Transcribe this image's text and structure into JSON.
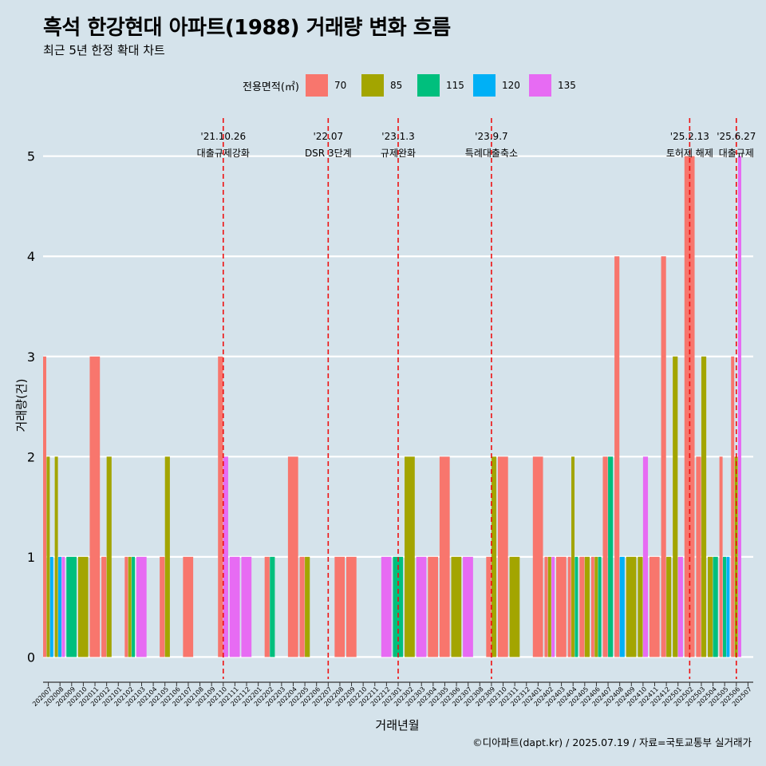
{
  "title": "흑석 한강현대 아파트(1988) 거래량 변화 흐름",
  "subtitle": "최근 5년 한정 확대 차트",
  "caption": "©디아파트(dapt.kr) / 2025.07.19 / 자료=국토교통부 실거래가",
  "legend": {
    "title": "전용면적(㎡)",
    "items": [
      {
        "label": "70",
        "color": "#f8766d"
      },
      {
        "label": "85",
        "color": "#a3a500"
      },
      {
        "label": "115",
        "color": "#00bf7d"
      },
      {
        "label": "120",
        "color": "#00b0f6"
      },
      {
        "label": "135",
        "color": "#e76bf3"
      }
    ]
  },
  "chart_data": {
    "type": "bar",
    "xlabel": "거래년월",
    "ylabel": "거래량(건)",
    "ylim": [
      -0.22,
      5.38
    ],
    "yticks": [
      0,
      1,
      2,
      3,
      4,
      5
    ],
    "grid": true,
    "legend_position": "top",
    "months": [
      "202007",
      "202008",
      "202009",
      "202010",
      "202011",
      "202012",
      "202101",
      "202102",
      "202103",
      "202104",
      "202105",
      "202106",
      "202107",
      "202108",
      "202109",
      "202110",
      "202111",
      "202112",
      "202201",
      "202202",
      "202203",
      "202204",
      "202205",
      "202206",
      "202207",
      "202208",
      "202209",
      "202210",
      "202211",
      "202212",
      "202301",
      "202302",
      "202303",
      "202304",
      "202305",
      "202306",
      "202307",
      "202308",
      "202309",
      "202310",
      "202311",
      "202312",
      "202401",
      "202402",
      "202403",
      "202404",
      "202405",
      "202406",
      "202407",
      "202408",
      "202409",
      "202410",
      "202411",
      "202412",
      "202501",
      "202502",
      "202503",
      "202504",
      "202505",
      "202506",
      "202507"
    ],
    "series": [
      {
        "name": "70",
        "color": "#f8766d",
        "points": [
          [
            "202007",
            3
          ],
          [
            "202011",
            3
          ],
          [
            "202012",
            1
          ],
          [
            "202102",
            1
          ],
          [
            "202105",
            1
          ],
          [
            "202107",
            1
          ],
          [
            "202110",
            3
          ],
          [
            "202202",
            1
          ],
          [
            "202204",
            2
          ],
          [
            "202205",
            1
          ],
          [
            "202208",
            1
          ],
          [
            "202209",
            1
          ],
          [
            "202304",
            1
          ],
          [
            "202305",
            2
          ],
          [
            "202309",
            1
          ],
          [
            "202310",
            2
          ],
          [
            "202401",
            2
          ],
          [
            "202402",
            1
          ],
          [
            "202403",
            1
          ],
          [
            "202404",
            1
          ],
          [
            "202405",
            1
          ],
          [
            "202406",
            1
          ],
          [
            "202407",
            2
          ],
          [
            "202408",
            4
          ],
          [
            "202411",
            1
          ],
          [
            "202412",
            4
          ],
          [
            "202502",
            5
          ],
          [
            "202503",
            2
          ],
          [
            "202505",
            2
          ],
          [
            "202506",
            3
          ]
        ]
      },
      {
        "name": "85",
        "color": "#a3a500",
        "points": [
          [
            "202007",
            2
          ],
          [
            "202008",
            2
          ],
          [
            "202010",
            1
          ],
          [
            "202012",
            2
          ],
          [
            "202102",
            1
          ],
          [
            "202105",
            2
          ],
          [
            "202205",
            1
          ],
          [
            "202302",
            2
          ],
          [
            "202306",
            1
          ],
          [
            "202309",
            2
          ],
          [
            "202311",
            1
          ],
          [
            "202402",
            1
          ],
          [
            "202404",
            2
          ],
          [
            "202405",
            1
          ],
          [
            "202406",
            1
          ],
          [
            "202409",
            1
          ],
          [
            "202410",
            1
          ],
          [
            "202412",
            1
          ],
          [
            "202501",
            3
          ],
          [
            "202503",
            3
          ],
          [
            "202504",
            1
          ],
          [
            "202506",
            2
          ]
        ]
      },
      {
        "name": "115",
        "color": "#00bf7d",
        "points": [
          [
            "202009",
            1
          ],
          [
            "202102",
            1
          ],
          [
            "202202",
            1
          ],
          [
            "202301",
            1
          ],
          [
            "202404",
            1
          ],
          [
            "202406",
            1
          ],
          [
            "202407",
            2
          ],
          [
            "202504",
            1
          ],
          [
            "202505",
            1
          ]
        ]
      },
      {
        "name": "120",
        "color": "#00b0f6",
        "points": [
          [
            "202007",
            1
          ],
          [
            "202008",
            1
          ],
          [
            "202408",
            1
          ],
          [
            "202505",
            1
          ]
        ]
      },
      {
        "name": "135",
        "color": "#e76bf3",
        "points": [
          [
            "202008",
            1
          ],
          [
            "202103",
            1
          ],
          [
            "202110",
            2
          ],
          [
            "202111",
            1
          ],
          [
            "202112",
            1
          ],
          [
            "202212",
            1
          ],
          [
            "202303",
            1
          ],
          [
            "202307",
            1
          ],
          [
            "202402",
            1
          ],
          [
            "202410",
            2
          ],
          [
            "202501",
            1
          ],
          [
            "202506",
            5
          ]
        ]
      }
    ],
    "events": [
      {
        "month": "202110",
        "date": "'21.10.26",
        "label": "대출규제강화"
      },
      {
        "month": "202207",
        "date": "'22.07",
        "label": "DSR 3단계"
      },
      {
        "month": "202301",
        "date": "'23.1.3",
        "label": "규제완화"
      },
      {
        "month": "202309",
        "date": "'23.9.7",
        "label": "특례대출축소"
      },
      {
        "month": "202502",
        "date": "'25.2.13",
        "label": "토허제 해제"
      },
      {
        "month": "202506",
        "date": "'25.6.27",
        "label": "대출규제"
      }
    ]
  }
}
